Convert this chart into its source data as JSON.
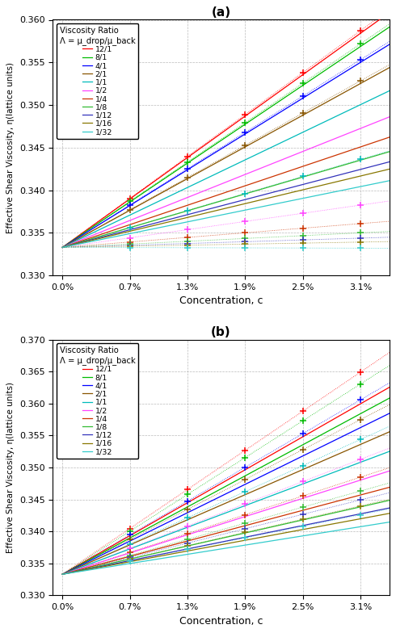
{
  "title_a": "(a)",
  "title_b": "(b)",
  "xlabel": "Concentration, c",
  "ylabel": "Effective Shear Viscosity, η(lattice units)",
  "legend_title": "Viscosity Ratio\nΛ = μ_drop/μ_back",
  "ratios": [
    "12/1",
    "8/1",
    "4/1",
    "2/1",
    "1/1",
    "1/2",
    "1/4",
    "1/8",
    "1/12",
    "1/16",
    "1/32"
  ],
  "colors": [
    "#ff0000",
    "#00bb00",
    "#0000ff",
    "#885500",
    "#00bbbb",
    "#ff44ff",
    "#cc3300",
    "#33bb33",
    "#3333bb",
    "#887700",
    "#33cccc"
  ],
  "x_ticks": [
    0.0,
    0.007,
    0.013,
    0.019,
    0.025,
    0.031
  ],
  "x_tick_labels": [
    "0.0%",
    "0.7%",
    "1.3%",
    "1.9%",
    "2.5%",
    "3.1%"
  ],
  "x_max": 0.034,
  "eta0": 0.3333,
  "panel_a": {
    "ylim": [
      0.33,
      0.36
    ],
    "yticks": [
      0.33,
      0.335,
      0.34,
      0.345,
      0.35,
      0.355,
      0.36
    ],
    "slopes_line": [
      0.81,
      0.76,
      0.7,
      0.62,
      0.54,
      0.45,
      0.38,
      0.33,
      0.295,
      0.27,
      0.23
    ],
    "slopes_scatter": [
      0.82,
      0.77,
      0.71,
      0.63,
      0.333,
      0.16,
      0.09,
      0.055,
      0.035,
      0.02,
      -0.003
    ]
  },
  "panel_b": {
    "ylim": [
      0.33,
      0.37
    ],
    "yticks": [
      0.33,
      0.335,
      0.34,
      0.345,
      0.35,
      0.355,
      0.36,
      0.365,
      0.37
    ],
    "slopes_line": [
      0.86,
      0.81,
      0.74,
      0.655,
      0.565,
      0.475,
      0.4,
      0.34,
      0.305,
      0.28,
      0.24
    ],
    "slopes_scatter": [
      1.02,
      0.96,
      0.88,
      0.78,
      0.68,
      0.58,
      0.49,
      0.42,
      0.375,
      0.345,
      0.3
    ]
  }
}
